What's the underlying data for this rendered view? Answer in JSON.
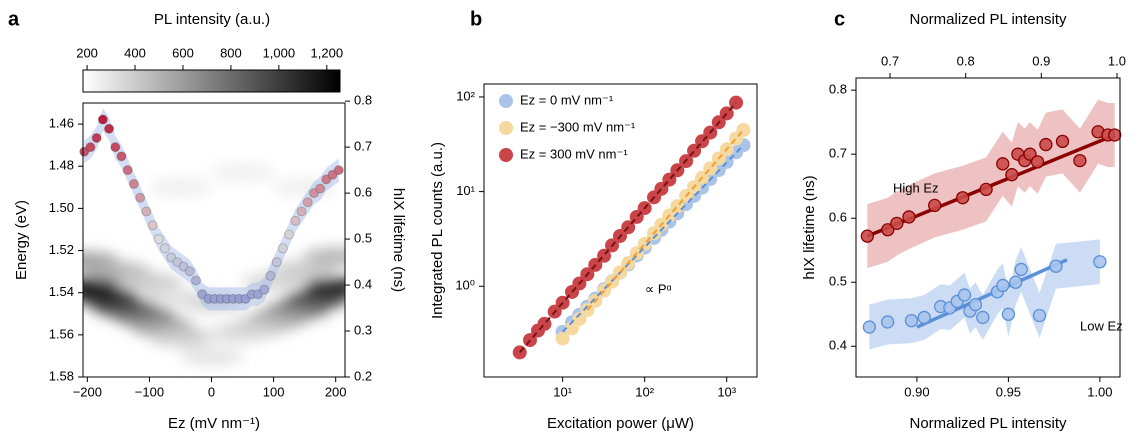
{
  "chart_data": [
    {
      "type": "heatmap",
      "panel": "a",
      "colorbar_label": "PL intensity (a.u.)",
      "clim": [
        183,
        1255
      ],
      "cticks": [
        200,
        400,
        600,
        800,
        {
          "value": 1000,
          "label": "1,000"
        },
        {
          "value": 1200,
          "label": "1,200"
        }
      ],
      "colormap": [
        "#ffffff",
        "#000000"
      ],
      "xlabel": "Ez (mV nm⁻¹)",
      "ylabel": "Energy (eV)",
      "y2label": "hIX lifetime (ns)",
      "xlim": [
        -207,
        215
      ],
      "xticks": [
        {
          "value": -200,
          "label": "−200"
        },
        {
          "value": -100,
          "label": "−100"
        },
        0,
        100,
        200
      ],
      "ylim": [
        1.45,
        1.58
      ],
      "yticks": [
        1.46,
        1.48,
        {
          "value": 1.5,
          "label": "1.50"
        },
        1.52,
        1.54,
        1.56,
        1.58
      ],
      "y2lim": [
        0.2,
        0.796
      ],
      "y2ticks": [
        0.2,
        0.3,
        0.4,
        0.5,
        0.6,
        0.7,
        0.8
      ],
      "y2colormap": [
        "#3b4cc0",
        "#dcdcdc",
        "#b40426"
      ],
      "map": {
        "x": [
          -200,
          -170,
          -140,
          -110,
          -80,
          -50,
          -200,
          -150,
          -100,
          -60,
          200,
          170,
          140,
          110,
          80,
          50,
          200,
          150,
          100,
          0,
          0,
          -50,
          50,
          150
        ],
        "y": [
          1.537,
          1.542,
          1.547,
          1.551,
          1.556,
          1.561,
          1.525,
          1.53,
          1.535,
          1.542,
          1.537,
          1.543,
          1.548,
          1.552,
          1.556,
          1.559,
          1.523,
          1.529,
          1.535,
          1.57,
          1.545,
          1.49,
          1.483,
          1.49
        ],
        "values": [
          1150,
          1100,
          1000,
          800,
          600,
          400,
          600,
          500,
          400,
          300,
          1100,
          1000,
          800,
          600,
          450,
          350,
          500,
          400,
          350,
          300,
          350,
          250,
          250,
          250
        ]
      },
      "lifetime": {
        "x": [
          -205,
          -195,
          -185,
          -175,
          -165,
          -155,
          -145,
          -135,
          -125,
          -115,
          -105,
          -95,
          -85,
          -75,
          -65,
          -55,
          -45,
          -35,
          -25,
          -15,
          -5,
          5,
          15,
          25,
          35,
          45,
          55,
          65,
          75,
          85,
          95,
          105,
          115,
          125,
          135,
          145,
          155,
          165,
          175,
          185,
          195,
          205
        ],
        "values": [
          0.69,
          0.7,
          0.72,
          0.76,
          0.74,
          0.7,
          0.68,
          0.65,
          0.62,
          0.59,
          0.56,
          0.53,
          0.5,
          0.48,
          0.46,
          0.45,
          0.44,
          0.43,
          0.41,
          0.38,
          0.37,
          0.37,
          0.37,
          0.37,
          0.37,
          0.37,
          0.37,
          0.38,
          0.38,
          0.39,
          0.42,
          0.45,
          0.48,
          0.51,
          0.54,
          0.56,
          0.58,
          0.6,
          0.61,
          0.63,
          0.64,
          0.65
        ],
        "error": 0.025
      }
    },
    {
      "type": "scatter",
      "panel": "b",
      "xscale": "log",
      "yscale": "log",
      "xlabel": "Excitation power (μW)",
      "ylabel": "Integrated PL counts (a.u.)",
      "xlim": [
        1.1,
        2340
      ],
      "ylim": [
        0.11,
        137
      ],
      "xticks": [
        {
          "value": 10,
          "label": "10¹"
        },
        {
          "value": 100,
          "label": "10²"
        },
        {
          "value": 1000,
          "label": "10³"
        }
      ],
      "yticks": [
        {
          "value": 1,
          "label": "10⁰"
        },
        {
          "value": 10,
          "label": "10¹"
        },
        {
          "value": 100,
          "label": "10²"
        }
      ],
      "annotation": "∝ Pᵅ",
      "legend": "upper left",
      "series": [
        {
          "name": "Ez = 0 mV nm⁻¹",
          "color": "#aac4e8",
          "fit_color": "#5b8fd9",
          "x": [
            10,
            13,
            16,
            20,
            25,
            32,
            40,
            50,
            63,
            80,
            100,
            130,
            160,
            200,
            250,
            320,
            400,
            500,
            630,
            800,
            1000,
            1300,
            1600
          ],
          "values": [
            0.33,
            0.417,
            0.5,
            0.61,
            0.74,
            0.93,
            1.13,
            1.39,
            1.7,
            2.12,
            2.56,
            3.24,
            3.95,
            4.83,
            5.89,
            7.38,
            9.0,
            11,
            13.6,
            16.9,
            20.6,
            26,
            30.9
          ],
          "fit_x": [
            10,
            1600
          ],
          "fit_values": [
            0.33,
            30.9
          ]
        },
        {
          "name": "Ez = −300 mV nm⁻¹",
          "color": "#f5d9a0",
          "fit_color": "#f0a030",
          "x": [
            10,
            13,
            16,
            20,
            25,
            32,
            40,
            50,
            63,
            80,
            100,
            130,
            160,
            200,
            250,
            320,
            400,
            500,
            630,
            800,
            1000,
            1300,
            1600
          ],
          "values": [
            0.28,
            0.36,
            0.45,
            0.56,
            0.7,
            0.9,
            1.12,
            1.4,
            1.76,
            2.24,
            2.8,
            3.64,
            4.48,
            5.6,
            7,
            9,
            11.2,
            14,
            17.6,
            22.4,
            28,
            36.4,
            44.8
          ],
          "fit_x": [
            20,
            1600
          ],
          "fit_values": [
            0.56,
            44.8
          ]
        },
        {
          "name": "Ez = 300 mV nm⁻¹",
          "color": "#c9454a",
          "fit_color": "#7a1010",
          "x": [
            3,
            4,
            5,
            6,
            8,
            10,
            13,
            16,
            20,
            25,
            32,
            40,
            50,
            63,
            80,
            100,
            130,
            160,
            200,
            250,
            320,
            400,
            500,
            630,
            800,
            1000,
            1300
          ],
          "values": [
            0.2,
            0.27,
            0.34,
            0.4,
            0.54,
            0.67,
            0.87,
            1.07,
            1.34,
            1.68,
            2.1,
            2.7,
            3.4,
            4.2,
            5.4,
            6.7,
            8.7,
            10.7,
            13.4,
            16.8,
            21,
            27,
            34,
            42,
            54,
            67,
            87
          ],
          "fit_x": [
            3,
            1300
          ],
          "fit_values": [
            0.2,
            87
          ]
        }
      ]
    },
    {
      "type": "scatter",
      "panel": "c",
      "ylabel": "hIX lifetime (ns)",
      "xlabel": "Normalized PL intensity",
      "xlabel_color": "#6f9be0",
      "x2label": "Normalized PL intensity",
      "x2label_color": "#9b1c1c",
      "xlim": [
        0.8667,
        1.011
      ],
      "xticks": [
        {
          "value": 0.9,
          "label": "0.90"
        },
        0.95,
        {
          "value": 1,
          "label": "1.00"
        }
      ],
      "x2lim": [
        0.655,
        1.004
      ],
      "x2ticks": [
        0.7,
        0.8,
        0.9,
        {
          "value": 1,
          "label": "1.0"
        }
      ],
      "ylim": [
        0.352,
        0.819
      ],
      "yticks": [
        0.4,
        0.5,
        0.6,
        0.7,
        0.8
      ],
      "series": [
        {
          "name": "High Ez",
          "axis": "x2",
          "color": "#c94a4a",
          "edge": "#8b0000",
          "fit_color": "#8b0000",
          "band_color": "#e39a9a",
          "x": [
            0.67,
            0.697,
            0.709,
            0.725,
            0.759,
            0.796,
            0.827,
            0.849,
            0.861,
            0.869,
            0.878,
            0.885,
            0.895,
            0.906,
            0.928,
            0.951,
            0.975,
            0.988,
            0.997
          ],
          "values": [
            0.572,
            0.582,
            0.592,
            0.602,
            0.62,
            0.632,
            0.645,
            0.685,
            0.668,
            0.7,
            0.69,
            0.7,
            0.688,
            0.715,
            0.72,
            0.69,
            0.735,
            0.73,
            0.73
          ],
          "error": 0.05,
          "fit_x": [
            0.67,
            0.997
          ],
          "fit_values": [
            0.572,
            0.73
          ]
        },
        {
          "name": "Low Ez",
          "color": "#a9c4ec",
          "edge": "#5b8fd9",
          "fit_color": "#5b8fd9",
          "band_color": "#a9c4ec",
          "x": [
            0.874,
            0.884,
            0.897,
            0.904,
            0.913,
            0.918,
            0.922,
            0.926,
            0.929,
            0.932,
            0.936,
            0.944,
            0.947,
            0.95,
            0.954,
            0.957,
            0.967,
            0.976,
            1.0
          ],
          "values": [
            0.43,
            0.438,
            0.44,
            0.445,
            0.462,
            0.46,
            0.47,
            0.48,
            0.455,
            0.465,
            0.445,
            0.485,
            0.495,
            0.45,
            0.5,
            0.52,
            0.448,
            0.525,
            0.532
          ],
          "error": 0.035,
          "fit_x": [
            0.9,
            0.982
          ],
          "fit_values": [
            0.43,
            0.535
          ]
        }
      ]
    }
  ]
}
